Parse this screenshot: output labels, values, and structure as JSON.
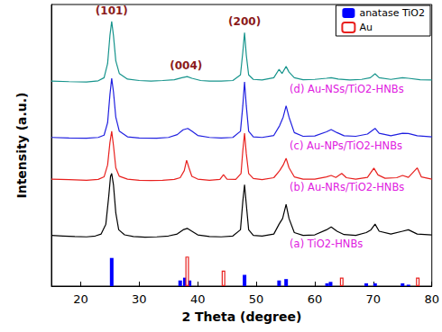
{
  "chart_data": {
    "type": "line",
    "x_label": "2 Theta (degree)",
    "y_label": "Intensity (a.u.)",
    "xlim": [
      15,
      80
    ],
    "xticks": [
      20,
      30,
      40,
      50,
      60,
      70,
      80
    ],
    "ylim": [
      0,
      100
    ],
    "tick_labels": "x",
    "grid": false,
    "legend": "upper right",
    "series": [
      {
        "name": "(a) TiO2-HNBs",
        "color": "#000000",
        "x": [
          15,
          17,
          19,
          21,
          22.5,
          23.5,
          24.3,
          24.8,
          25.1,
          25.3,
          25.6,
          26,
          26.5,
          27.5,
          29,
          31,
          33,
          35,
          36.5,
          37.5,
          38.2,
          39,
          40,
          42,
          44,
          46,
          47.3,
          47.7,
          48,
          48.3,
          48.7,
          49.5,
          51,
          53,
          53.9,
          54.5,
          55.1,
          55.6,
          56.5,
          58,
          60,
          62,
          62.8,
          63.8,
          65,
          67,
          68.8,
          69.6,
          70.3,
          71,
          73,
          75,
          76,
          77.5,
          80
        ],
        "values": [
          18,
          17.8,
          17.6,
          17.5,
          17.8,
          18.5,
          22,
          32,
          39,
          40,
          36,
          26,
          20,
          18.2,
          17.6,
          17.4,
          17.5,
          17.8,
          18.5,
          20,
          20.5,
          19.5,
          18.2,
          17.6,
          17.5,
          17.8,
          20,
          30,
          36,
          29,
          20,
          18,
          17.8,
          18.5,
          22,
          24,
          29,
          24,
          19,
          18,
          18.2,
          20,
          21,
          19.5,
          18.3,
          18,
          19,
          20,
          22,
          19.5,
          18.5,
          19.5,
          20,
          18.5,
          18.2
        ]
      },
      {
        "name": "(b) Au-NRs/TiO2-HNBs",
        "color": "#e8201e",
        "x": [
          15,
          18,
          21,
          23,
          24,
          24.6,
          25,
          25.3,
          25.6,
          26,
          26.6,
          28,
          30,
          32,
          34,
          36,
          37,
          37.7,
          38.1,
          38.5,
          39,
          40,
          42,
          43.8,
          44.4,
          45,
          46.5,
          47.4,
          47.7,
          48,
          48.3,
          48.7,
          49.5,
          51,
          53,
          54,
          54.6,
          55.1,
          55.6,
          56.5,
          58,
          60,
          62,
          62.8,
          63.6,
          64.6,
          65.4,
          67,
          69,
          70.1,
          70.8,
          72,
          74,
          75,
          76,
          77.5,
          78.2,
          80
        ],
        "values": [
          38,
          37.8,
          37.6,
          37.9,
          38.8,
          43,
          51,
          55,
          50,
          42,
          39,
          38,
          37.6,
          37.5,
          37.6,
          37.9,
          38.5,
          41,
          44.7,
          42,
          39,
          38,
          37.6,
          37.9,
          39.6,
          38,
          37.9,
          40,
          48,
          54.3,
          47,
          40,
          38.2,
          37.8,
          38.5,
          41,
          43,
          45.4,
          42,
          38.8,
          38,
          38,
          38.8,
          39.3,
          38.6,
          40,
          38.5,
          38,
          38.6,
          41.9,
          39.5,
          38.3,
          38.5,
          39.3,
          38.6,
          42,
          38.8,
          38
        ]
      },
      {
        "name": "(c) Au-NPs/TiO2-HNBs",
        "color": "#1f1fe0",
        "x": [
          15,
          18,
          21,
          23,
          24,
          24.6,
          25,
          25.3,
          25.6,
          26,
          26.6,
          28,
          30,
          33,
          35,
          36.5,
          37.5,
          38.3,
          39,
          40,
          42,
          44,
          46,
          47.3,
          47.7,
          48,
          48.3,
          48.7,
          49.5,
          51,
          53,
          54,
          54.6,
          55.1,
          55.6,
          56.5,
          58,
          60,
          62,
          62.8,
          63.8,
          65,
          67,
          69,
          70.3,
          71,
          73,
          75,
          76,
          77.5,
          80
        ],
        "values": [
          52.8,
          52.6,
          52.5,
          52.8,
          53.6,
          58,
          68,
          73.8,
          69,
          60,
          55,
          53,
          52.6,
          52.5,
          52.8,
          53.8,
          55.5,
          56,
          55,
          53.5,
          52.8,
          52.6,
          52.8,
          55,
          64,
          72.5,
          64,
          55,
          53,
          52.8,
          53.5,
          57,
          60,
          64,
          60,
          54.5,
          53.2,
          53.3,
          54.8,
          55.6,
          54.5,
          53.4,
          53.2,
          54,
          56,
          54.3,
          53.4,
          54.3,
          54.2,
          53.4,
          53
        ]
      },
      {
        "name": "(d) Au-NSs/TiO2-HNBs",
        "color": "#16948c",
        "x": [
          15,
          18,
          21,
          23,
          24,
          24.6,
          25,
          25.3,
          25.6,
          26,
          26.6,
          28,
          30,
          32,
          34,
          36,
          37.3,
          38.2,
          39,
          40.5,
          42,
          44,
          46,
          47.3,
          47.7,
          48,
          48.3,
          48.7,
          49.5,
          51,
          53,
          53.9,
          54.4,
          55.1,
          55.6,
          56.5,
          58,
          60,
          62,
          62.8,
          64,
          66,
          68,
          69.5,
          70.3,
          71,
          73,
          75,
          76,
          78,
          80
        ],
        "values": [
          72.8,
          72.6,
          72.5,
          72.9,
          74,
          79,
          89,
          94,
          89,
          80,
          75.5,
          73.5,
          73,
          72.8,
          73,
          73.3,
          74,
          74.4,
          73.8,
          73,
          72.8,
          72.8,
          73,
          75,
          83,
          90,
          82,
          75,
          73.4,
          73.2,
          74,
          77,
          75.5,
          78,
          76,
          74,
          73.3,
          73.4,
          73.8,
          74,
          73.5,
          73.2,
          73.4,
          74,
          75.4,
          74,
          73.4,
          74,
          73.8,
          73.3,
          73.2
        ]
      }
    ],
    "reference_patterns": [
      {
        "name": "anatase TiO2",
        "color": "#0000ff",
        "marker": "filled",
        "x": [
          25.3,
          37.0,
          37.8,
          38.6,
          48.0,
          53.9,
          55.1,
          62.1,
          62.7,
          68.8,
          70.3,
          75.0,
          76.0
        ],
        "values": [
          10,
          2,
          3,
          2,
          4,
          2,
          2.5,
          1,
          1.5,
          1,
          1,
          1,
          0.5
        ]
      },
      {
        "name": "Au",
        "color": "#e8201e",
        "marker": "hollow",
        "x": [
          38.2,
          44.4,
          64.6,
          77.6
        ],
        "values": [
          10.5,
          5.5,
          3,
          3
        ]
      }
    ],
    "annotations": [
      {
        "text": "(101)",
        "x": 25.3
      },
      {
        "text": "(004)",
        "x": 38.0
      },
      {
        "text": "(200)",
        "x": 48.0
      }
    ]
  }
}
